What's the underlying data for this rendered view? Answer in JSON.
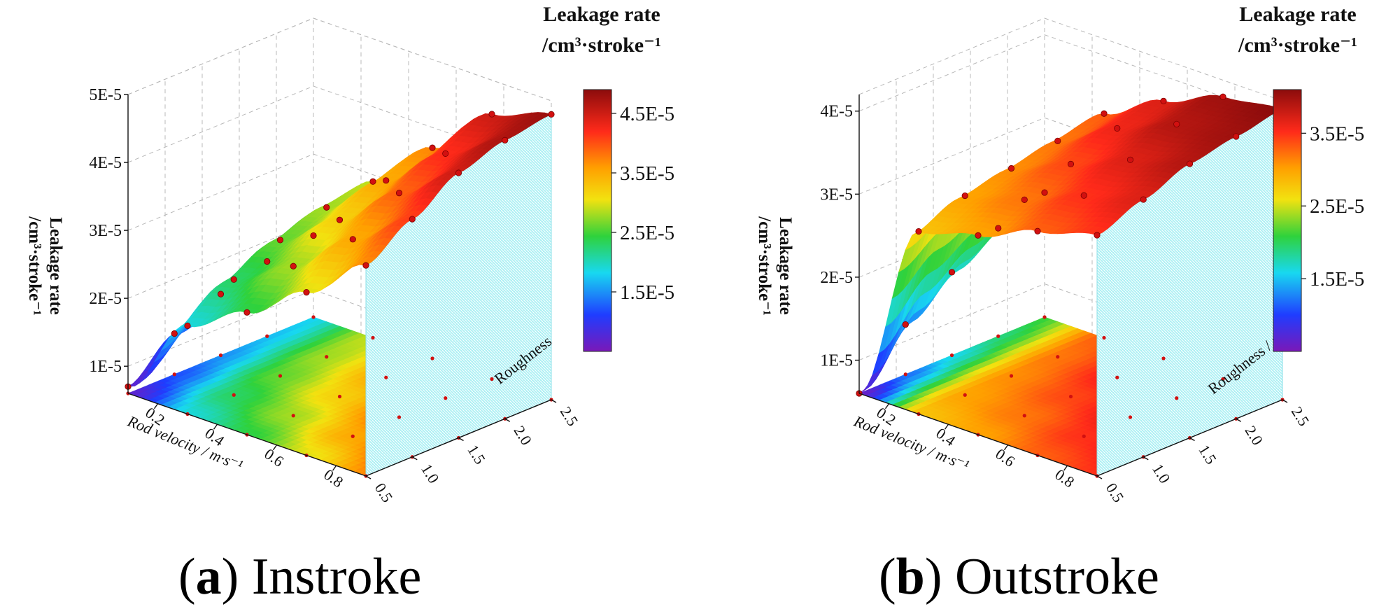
{
  "figure": {
    "caption_a": {
      "letter": "a",
      "text": " Instroke"
    },
    "caption_b": {
      "letter": "b",
      "text": " Outstroke"
    }
  },
  "colors": {
    "violet": "#7a18b8",
    "blue": "#1f3dff",
    "cyan": "#18d8f0",
    "green": "#2fd23c",
    "yellow": "#f2e210",
    "orange": "#ffa000",
    "red": "#ff2a1a",
    "darkred": "#8c0c0c",
    "wall": "#aef0f4",
    "dot": "#d21010"
  },
  "chart_data": [
    {
      "type": "surface",
      "title": "Instroke",
      "xlabel": "Rod velocity / m·s⁻¹",
      "ylabel": "Roughness",
      "zlabel_line1": "Leakage rate",
      "zlabel_line2": "/cm³·stroke⁻¹",
      "x_ticks": [
        "0.2",
        "0.4",
        "0.6",
        "0.8"
      ],
      "y_ticks": [
        "0.5",
        "1.0",
        "1.5",
        "2.0",
        "2.5"
      ],
      "z_ticks": [
        "1E-5",
        "2E-5",
        "3E-5",
        "4E-5",
        "5E-5"
      ],
      "z_range": [
        6e-06,
        5e-05
      ],
      "colorbar": {
        "title_line1": "Leakage rate",
        "title_line2": "/cm³·stroke⁻¹",
        "ticks": [
          "1.5E-5",
          "2.5E-5",
          "3.5E-5",
          "4.5E-5"
        ],
        "range": [
          5e-06,
          4.9e-05
        ]
      },
      "velocity": [
        0.1,
        0.3,
        0.5,
        0.7,
        0.9
      ],
      "roughness": [
        0.5,
        1.0,
        1.5,
        2.0,
        2.5
      ],
      "leakage": [
        [
          7e-06,
          1.2e-05,
          1.5e-05,
          1.7e-05,
          1.8e-05
        ],
        [
          1.9e-05,
          2.3e-05,
          2.6e-05,
          2.8e-05,
          2.9e-05
        ],
        [
          2.4e-05,
          2.8e-05,
          3.2e-05,
          3.5e-05,
          3.7e-05
        ],
        [
          3e-05,
          3.5e-05,
          3.9e-05,
          4.2e-05,
          4.5e-05
        ],
        [
          3.7e-05,
          4.1e-05,
          4.5e-05,
          4.7e-05,
          4.8e-05
        ]
      ]
    },
    {
      "type": "surface",
      "title": "Outstroke",
      "xlabel": "Rod velocity / m·s⁻¹",
      "ylabel": "Roughness / μm",
      "zlabel_line1": "Leakage rate",
      "zlabel_line2": "/cm³·stroke⁻¹",
      "x_ticks": [
        "0.2",
        "0.4",
        "0.6",
        "0.8"
      ],
      "y_ticks": [
        "0.5",
        "1.0",
        "1.5",
        "2.0",
        "2.5"
      ],
      "z_ticks": [
        "1E-5",
        "2E-5",
        "3E-5",
        "4E-5"
      ],
      "z_range": [
        6e-06,
        4.2e-05
      ],
      "colorbar": {
        "title_line1": "Leakage rate",
        "title_line2": "/cm³·stroke⁻¹",
        "ticks": [
          "1.5E-5",
          "2.5E-5",
          "3.5E-5"
        ],
        "range": [
          5e-06,
          4.1e-05
        ]
      },
      "velocity": [
        0.1,
        0.3,
        0.5,
        0.7,
        0.9
      ],
      "roughness": [
        0.5,
        1.0,
        1.5,
        2.0,
        2.5
      ],
      "leakage": [
        [
          6e-06,
          1.2e-05,
          1.6e-05,
          1.9e-05,
          2.1e-05
        ],
        [
          2.8e-05,
          3e-05,
          3.1e-05,
          3.2e-05,
          3.3e-05
        ],
        [
          3e-05,
          3.2e-05,
          3.4e-05,
          3.6e-05,
          3.7e-05
        ],
        [
          3.3e-05,
          3.5e-05,
          3.7e-05,
          3.9e-05,
          4e-05
        ],
        [
          3.5e-05,
          3.7e-05,
          3.9e-05,
          4e-05,
          4.1e-05
        ]
      ]
    }
  ]
}
